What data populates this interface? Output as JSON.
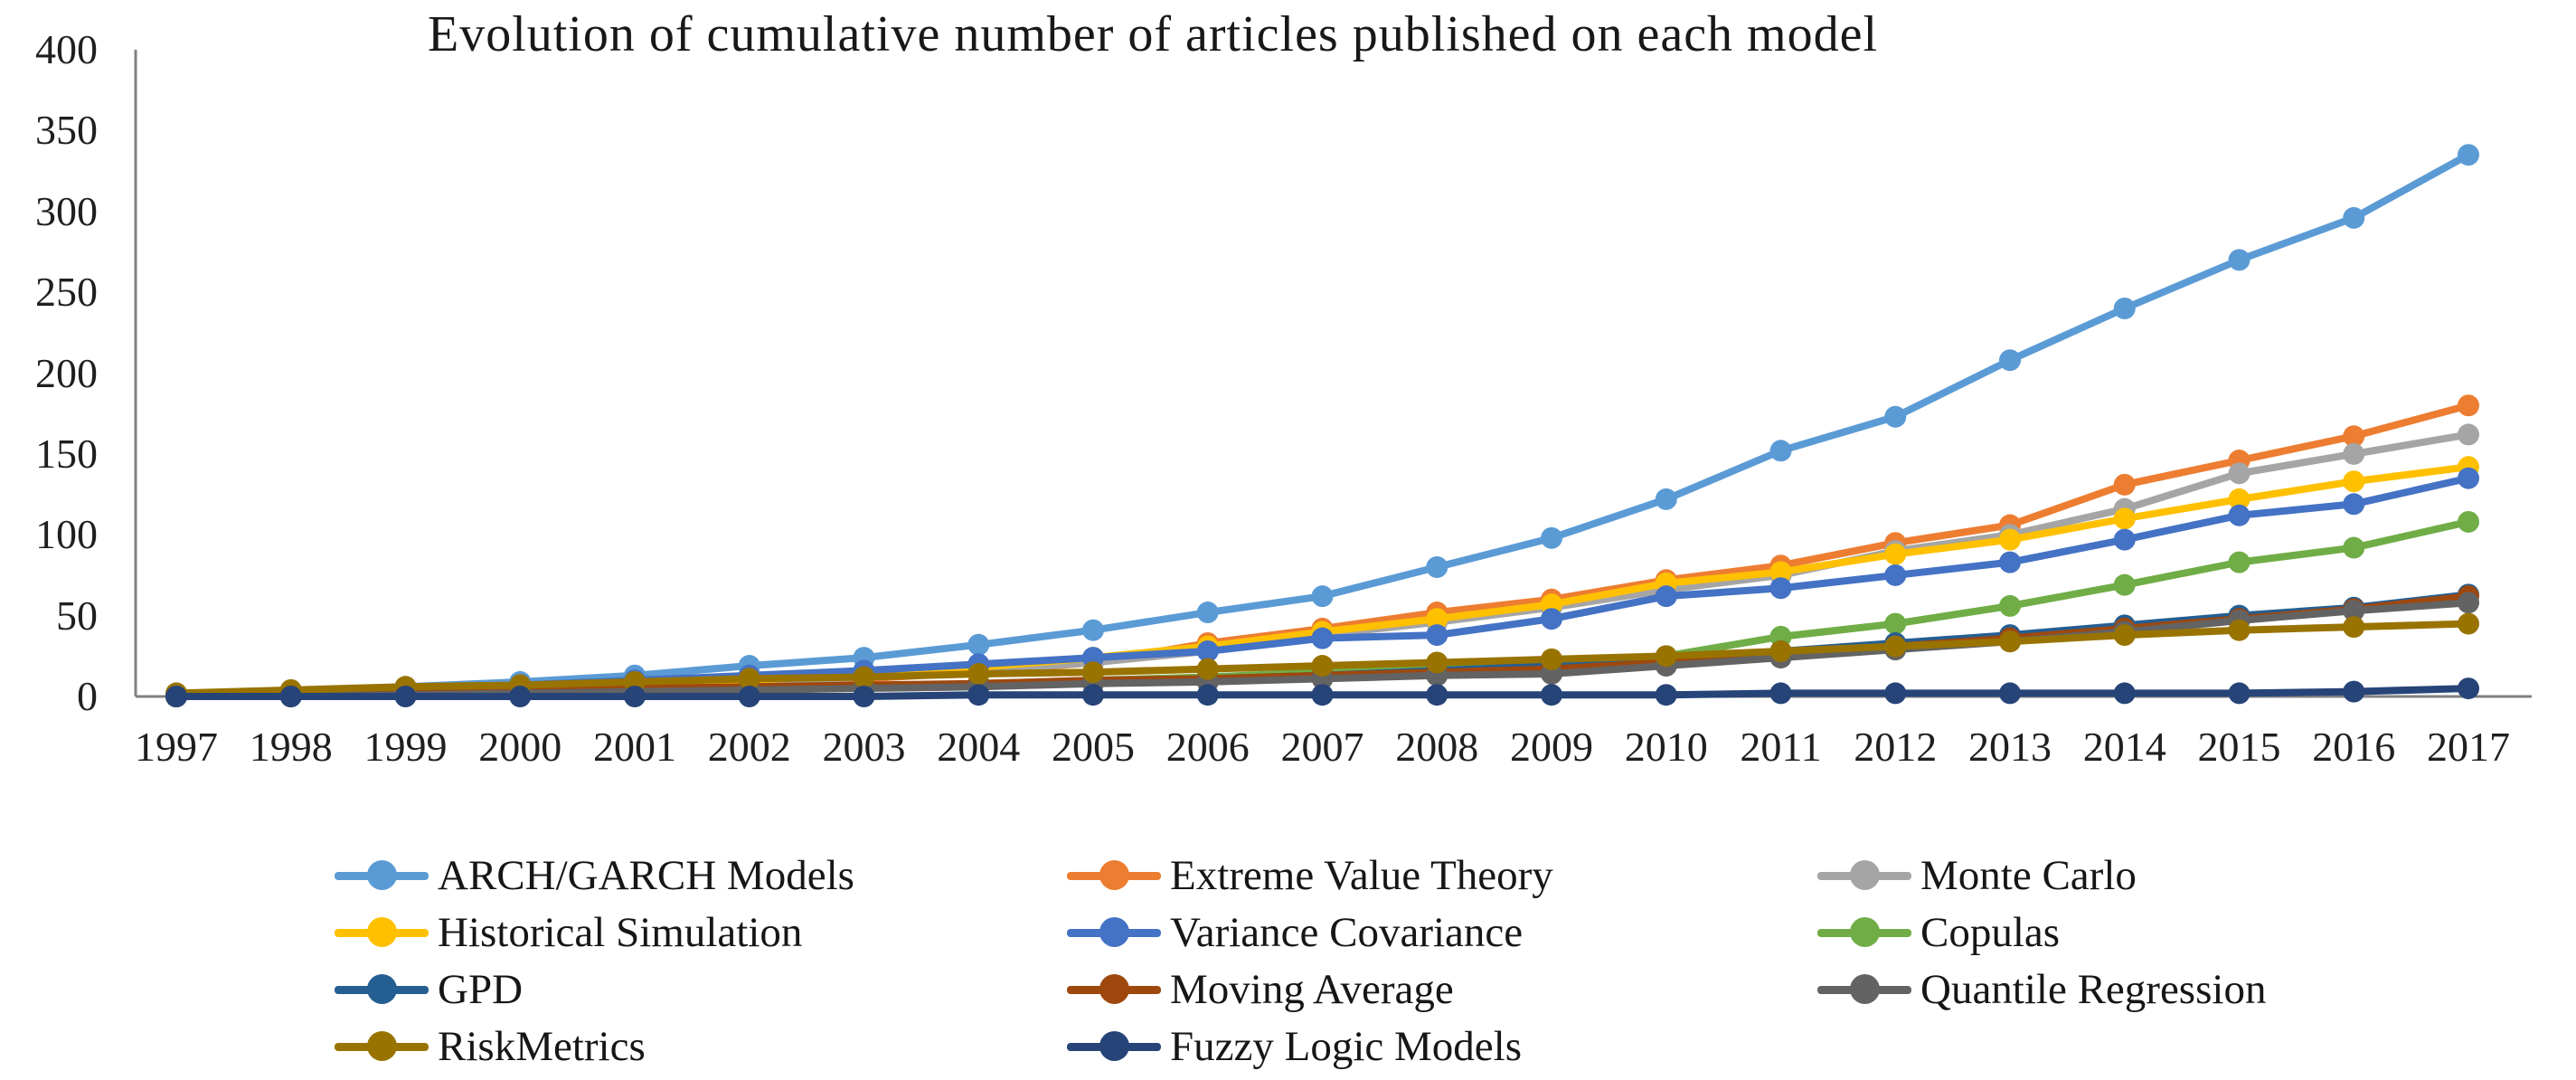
{
  "title": "Evolution of cumulative number of articles published on each model",
  "chart_data": {
    "type": "line",
    "title": "Evolution of cumulative number of articles published on each model",
    "xlabel": "",
    "ylabel": "",
    "x": [
      1997,
      1998,
      1999,
      2000,
      2001,
      2002,
      2003,
      2004,
      2005,
      2006,
      2007,
      2008,
      2009,
      2010,
      2011,
      2012,
      2013,
      2014,
      2015,
      2016,
      2017
    ],
    "ylim": [
      0,
      400
    ],
    "y_ticks": [
      0,
      50,
      100,
      150,
      200,
      250,
      300,
      350,
      400
    ],
    "grid": false,
    "legend_position": "bottom",
    "marker": "circle",
    "axis_color": "#808080",
    "series": [
      {
        "name": "ARCH/GARCH Models",
        "color": "#5B9BD5",
        "values": [
          1,
          3,
          6,
          9,
          13,
          19,
          24,
          32,
          41,
          52,
          62,
          80,
          98,
          122,
          152,
          173,
          208,
          240,
          270,
          296,
          335
        ]
      },
      {
        "name": "Extreme Value Theory",
        "color": "#ED7D31",
        "values": [
          0,
          1,
          2,
          4,
          6,
          8,
          11,
          15,
          21,
          33,
          42,
          52,
          60,
          72,
          81,
          95,
          106,
          131,
          146,
          161,
          180
        ]
      },
      {
        "name": "Monte Carlo",
        "color": "#A5A5A5",
        "values": [
          0,
          1,
          3,
          5,
          7,
          9,
          12,
          16,
          21,
          28,
          38,
          46,
          55,
          66,
          75,
          90,
          100,
          116,
          138,
          150,
          162
        ]
      },
      {
        "name": "Historical Simulation",
        "color": "#FFC000",
        "values": [
          0,
          1,
          3,
          6,
          8,
          10,
          14,
          18,
          24,
          31,
          40,
          48,
          57,
          70,
          77,
          88,
          97,
          110,
          122,
          133,
          142
        ]
      },
      {
        "name": "Variance Covariance",
        "color": "#4472C4",
        "values": [
          1,
          2,
          4,
          7,
          10,
          13,
          16,
          20,
          24,
          28,
          36,
          38,
          48,
          62,
          67,
          75,
          83,
          97,
          112,
          119,
          135
        ]
      },
      {
        "name": "Copulas",
        "color": "#70AD47",
        "values": [
          0,
          0,
          1,
          2,
          3,
          4,
          6,
          8,
          10,
          12,
          15,
          18,
          21,
          25,
          37,
          45,
          56,
          69,
          83,
          92,
          108
        ]
      },
      {
        "name": "GPD",
        "color": "#255E91",
        "values": [
          0,
          1,
          2,
          3,
          4,
          5,
          6,
          8,
          9,
          11,
          13,
          16,
          19,
          24,
          28,
          33,
          38,
          44,
          50,
          55,
          63
        ]
      },
      {
        "name": "Moving Average",
        "color": "#9E480E",
        "values": [
          1,
          2,
          3,
          4,
          5,
          6,
          7,
          8,
          10,
          11,
          13,
          15,
          17,
          21,
          26,
          31,
          36,
          42,
          48,
          54,
          62
        ]
      },
      {
        "name": "Quantile Regression",
        "color": "#636363",
        "values": [
          0,
          0,
          1,
          2,
          3,
          4,
          5,
          6,
          8,
          9,
          11,
          13,
          14,
          19,
          24,
          29,
          34,
          40,
          47,
          53,
          58
        ]
      },
      {
        "name": "RiskMetrics",
        "color": "#997300",
        "values": [
          2,
          4,
          6,
          7,
          9,
          11,
          12,
          14,
          15,
          17,
          19,
          21,
          23,
          25,
          28,
          31,
          34,
          38,
          41,
          43,
          45
        ]
      },
      {
        "name": "Fuzzy Logic Models",
        "color": "#264478",
        "values": [
          0,
          0,
          0,
          0,
          0,
          0,
          0,
          1,
          1,
          1,
          1,
          1,
          1,
          1,
          2,
          2,
          2,
          2,
          2,
          3,
          5
        ]
      }
    ]
  }
}
